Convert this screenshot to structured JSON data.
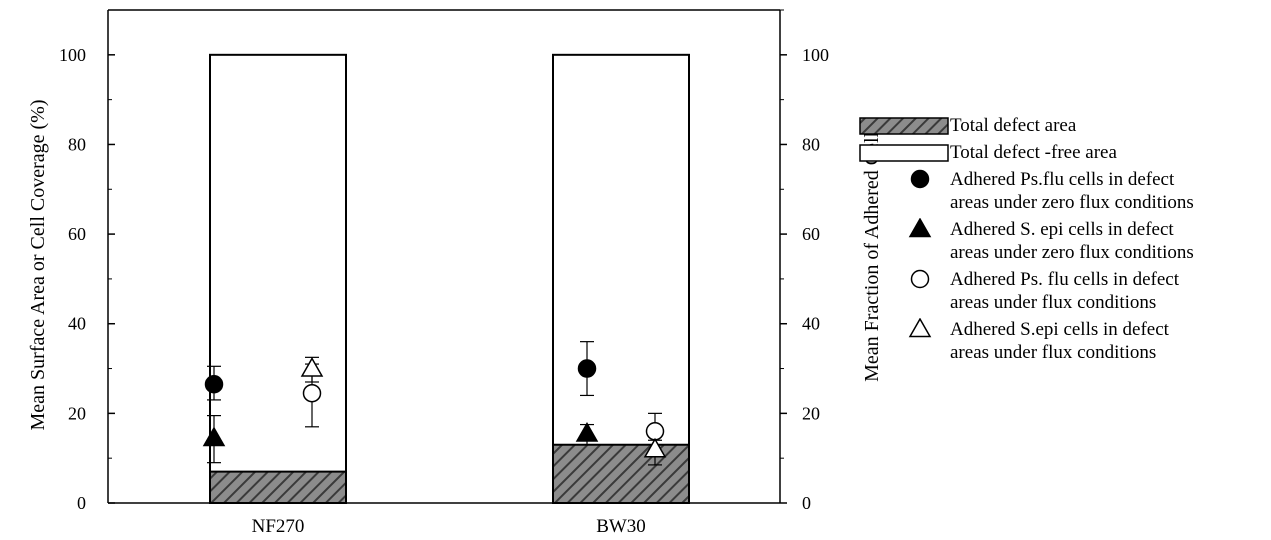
{
  "chart_data": {
    "type": "bar",
    "categories": [
      "NF270",
      "BW30"
    ],
    "ylabel": "Mean Surface Area or Cell Coverage (%)",
    "y2label": "Mean Fraction of Adhered Cells",
    "ylim": [
      0,
      110
    ],
    "y2lim": [
      0,
      110
    ],
    "yticks": [
      0,
      20,
      40,
      60,
      80,
      100
    ],
    "grid": false,
    "legend_position": "right",
    "bars": {
      "total_defect_free_area": [
        100,
        100
      ],
      "total_defect_area": [
        7,
        13
      ]
    },
    "points": [
      {
        "series": "Adhered Ps.flu cells in defect areas under zero flux conditions",
        "marker": "circle-filled",
        "values": [
          26.5,
          30
        ],
        "err_low": [
          3.5,
          6
        ],
        "err_high": [
          4,
          6
        ]
      },
      {
        "series": "Adhered S. epi cells in defect areas under zero flux conditions",
        "marker": "triangle-filled",
        "values": [
          14.5,
          15.5
        ],
        "err_low": [
          5.5,
          2.5
        ],
        "err_high": [
          5,
          2
        ]
      },
      {
        "series": "Adhered Ps. flu cells in defect areas under flux conditions",
        "marker": "circle-open",
        "values": [
          24.5,
          16
        ],
        "err_low": [
          7.5,
          3
        ],
        "err_high": [
          6.5,
          4
        ]
      },
      {
        "series": "Adhered S.epi cells in defect areas under flux conditions",
        "marker": "triangle-open",
        "values": [
          30,
          12
        ],
        "err_low": [
          3,
          3.5
        ],
        "err_high": [
          2.5,
          2
        ]
      }
    ]
  },
  "legend": [
    {
      "swatch": "hatched-bar",
      "label": "Total defect area"
    },
    {
      "swatch": "white-bar",
      "label": "Total defect -free area"
    },
    {
      "swatch": "circle-filled",
      "label": "Adhered Ps.flu cells in defect\nareas under zero flux conditions"
    },
    {
      "swatch": "triangle-filled",
      "label": "Adhered S. epi cells in defect\nareas under zero flux conditions"
    },
    {
      "swatch": "circle-open",
      "label": "Adhered Ps. flu cells in defect\nareas under flux conditions"
    },
    {
      "swatch": "triangle-open",
      "label": "Adhered S.epi cells in defect\nareas under flux conditions"
    }
  ],
  "colors": {
    "hatch_fill": "#8c8c8c",
    "hatch_line": "#3a3a3a",
    "axis": "#000000"
  }
}
